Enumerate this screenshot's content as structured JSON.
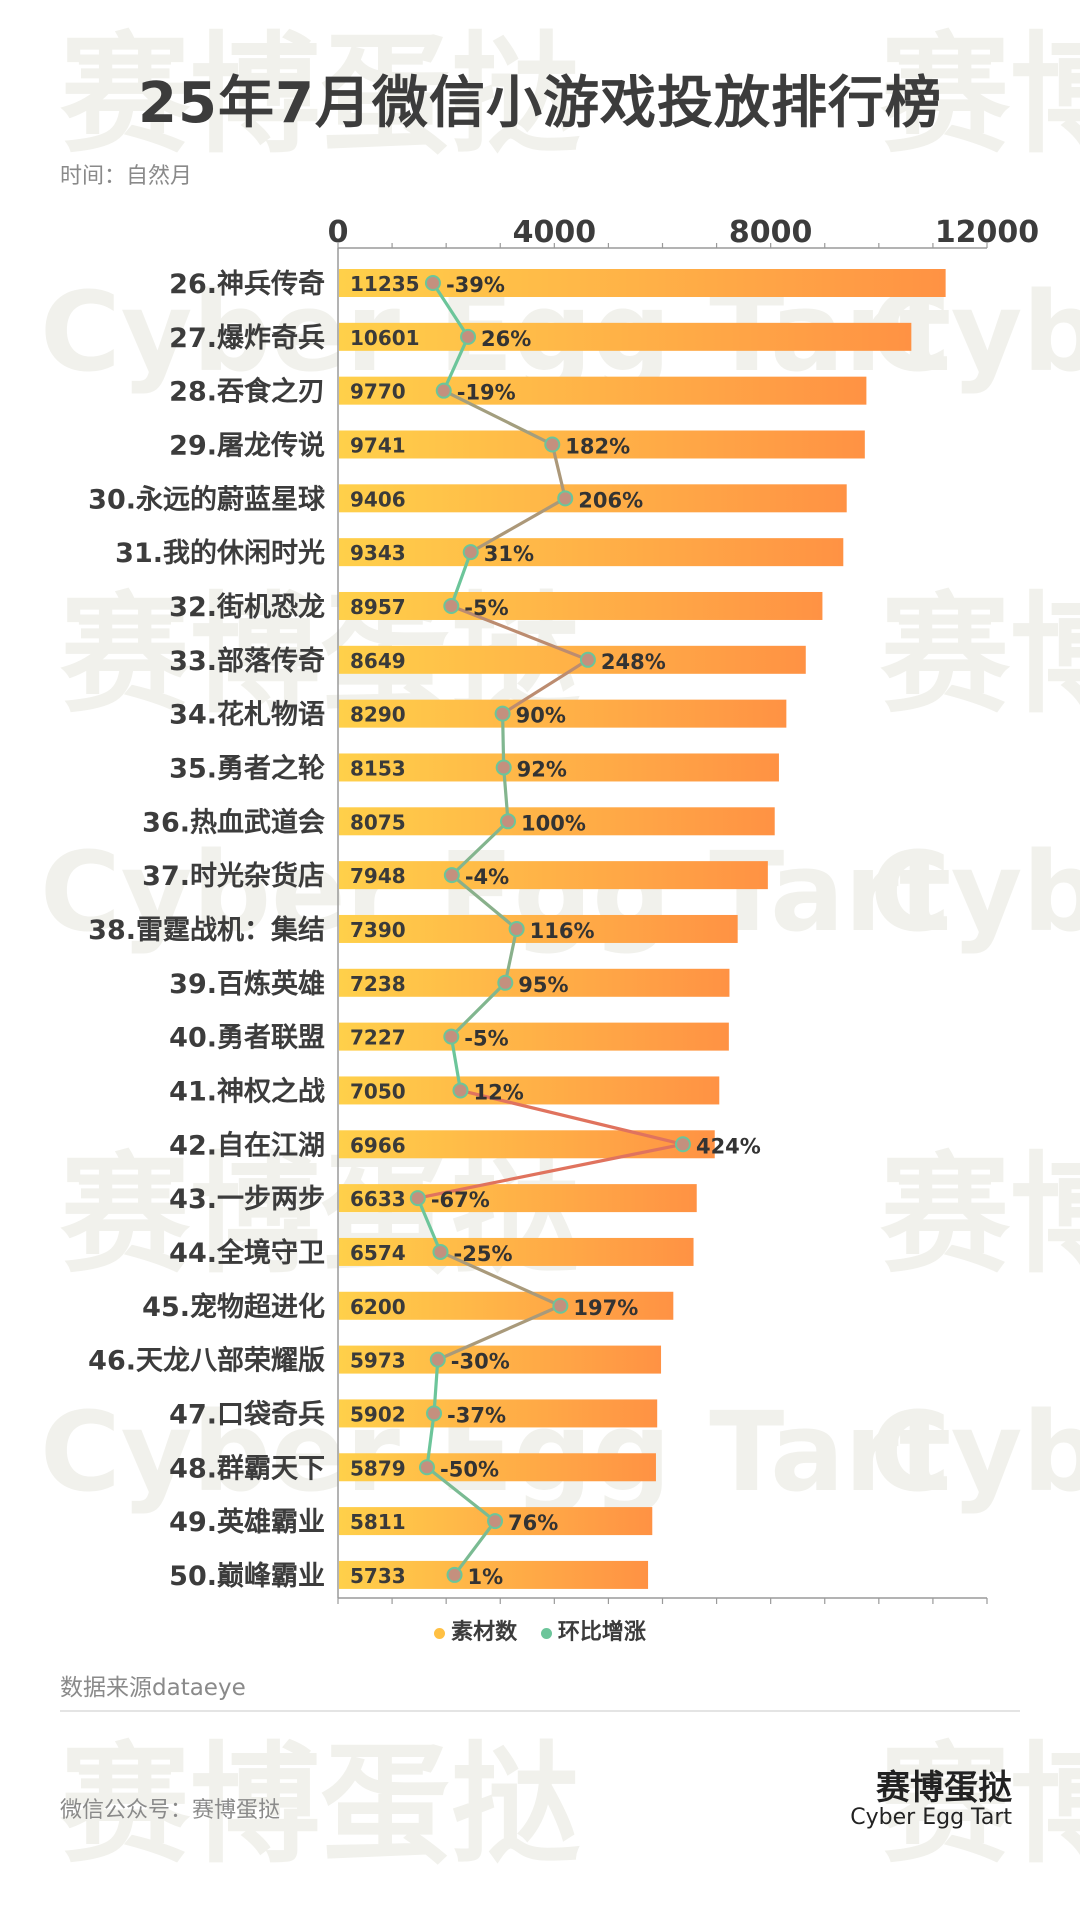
{
  "header": {
    "title": "25年7月微信小游戏投放排行榜",
    "subtitle": "时间：自然月"
  },
  "chart_data": {
    "type": "bar",
    "orientation": "horizontal",
    "categories": [
      "26.神兵传奇",
      "27.爆炸奇兵",
      "28.吞食之刃",
      "29.屠龙传说",
      "30.永远的蔚蓝星球",
      "31.我的休闲时光",
      "32.街机恐龙",
      "33.部落传奇",
      "34.花札物语",
      "35.勇者之轮",
      "36.热血武道会",
      "37.时光杂货店",
      "38.雷霆战机：集结",
      "39.百炼英雄",
      "40.勇者联盟",
      "41.神权之战",
      "42.自在江湖",
      "43.一步两步",
      "44.全境守卫",
      "45.宠物超进化",
      "46.天龙八部荣耀版",
      "47.口袋奇兵",
      "48.群霸天下",
      "49.英雄霸业",
      "50.巅峰霸业"
    ],
    "series": [
      {
        "name": "素材数",
        "type": "bar",
        "values": [
          11235,
          10601,
          9770,
          9741,
          9406,
          9343,
          8957,
          8649,
          8290,
          8153,
          8075,
          7948,
          7390,
          7238,
          7227,
          7050,
          6966,
          6633,
          6574,
          6200,
          5973,
          5902,
          5879,
          5811,
          5733
        ]
      },
      {
        "name": "环比增涨",
        "type": "line",
        "values": [
          -39,
          26,
          -19,
          182,
          206,
          31,
          -5,
          248,
          90,
          92,
          100,
          -4,
          116,
          95,
          -5,
          12,
          424,
          -67,
          -25,
          197,
          -30,
          -37,
          -50,
          76,
          1
        ],
        "labels": [
          "-39%",
          "26%",
          "-19%",
          "182%",
          "206%",
          "31%",
          "-5%",
          "248%",
          "90%",
          "92%",
          "100%",
          "-4%",
          "116%",
          "95%",
          "-5%",
          "12%",
          "424%",
          "-67%",
          "-25%",
          "197%",
          "-30%",
          "-37%",
          "-50%",
          "76%",
          "1%"
        ]
      }
    ],
    "x_axis": {
      "min": 0,
      "max": 12000,
      "ticks": [
        "0",
        "4000",
        "8000",
        "12000"
      ],
      "position": "top"
    },
    "grid": false,
    "legend": "bottom-center",
    "colors": {
      "bar_start": "#ffd04a",
      "bar_end": "#ff9244",
      "line_low": "#6cc59a",
      "line_high": "#e0735e",
      "marker": "#c4907e"
    }
  },
  "legend": {
    "bar_label": "素材数",
    "line_label": "环比增涨"
  },
  "footer": {
    "source": "数据来源dataeye",
    "account": "微信公众号：赛博蛋挞",
    "brand_cn": "赛博蛋挞",
    "brand_en": "Cyber Egg Tart"
  },
  "watermark": {
    "cn": "赛博蛋挞",
    "en": "Cyber Egg Tart"
  }
}
